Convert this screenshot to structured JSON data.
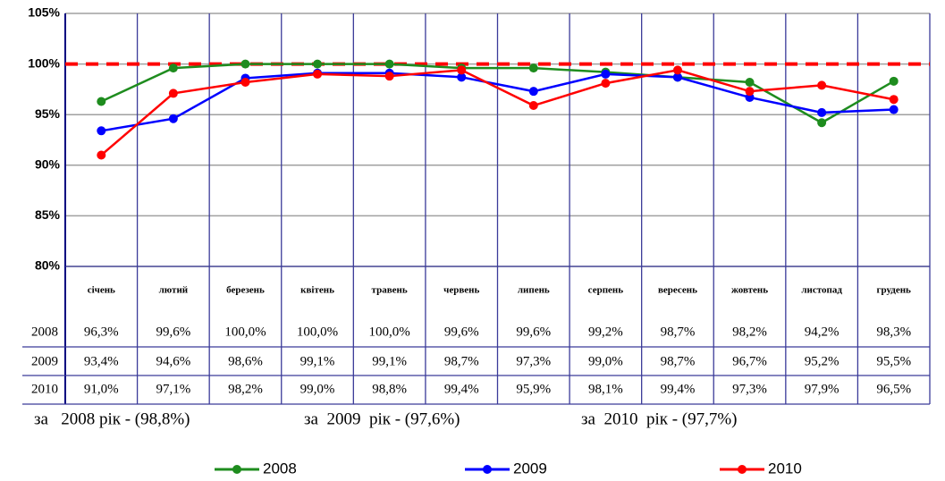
{
  "chart_data": {
    "type": "line",
    "categories": [
      "січень",
      "лютий",
      "березень",
      "квітень",
      "травень",
      "червень",
      "липень",
      "серпень",
      "вересень",
      "жовтень",
      "листопад",
      "грудень"
    ],
    "series": [
      {
        "name": "2008",
        "color": "#1e8c1e",
        "values": [
          96.3,
          99.6,
          100.0,
          100.0,
          100.0,
          99.6,
          99.6,
          99.2,
          98.7,
          98.2,
          94.2,
          98.3
        ],
        "value_labels": [
          "96,3%",
          "99,6%",
          "100,0%",
          "100,0%",
          "100,0%",
          "99,6%",
          "99,6%",
          "99,2%",
          "98,7%",
          "98,2%",
          "94,2%",
          "98,3%"
        ]
      },
      {
        "name": "2009",
        "color": "#0000ff",
        "values": [
          93.4,
          94.6,
          98.6,
          99.1,
          99.1,
          98.7,
          97.3,
          99.0,
          98.7,
          96.7,
          95.2,
          95.5
        ],
        "value_labels": [
          "93,4%",
          "94,6%",
          "98,6%",
          "99,1%",
          "99,1%",
          "98,7%",
          "97,3%",
          "99,0%",
          "98,7%",
          "96,7%",
          "95,2%",
          "95,5%"
        ]
      },
      {
        "name": "2010",
        "color": "#ff0000",
        "values": [
          91.0,
          97.1,
          98.2,
          99.0,
          98.8,
          99.4,
          95.9,
          98.1,
          99.4,
          97.3,
          97.9,
          96.5
        ],
        "value_labels": [
          "91,0%",
          "97,1%",
          "98,2%",
          "99,0%",
          "98,8%",
          "99,4%",
          "95,9%",
          "98,1%",
          "99,4%",
          "97,3%",
          "97,9%",
          "96,5%"
        ]
      }
    ],
    "ylim": [
      80,
      105
    ],
    "yticks": [
      {
        "value": 80,
        "label": "80%"
      },
      {
        "value": 85,
        "label": "85%"
      },
      {
        "value": 90,
        "label": "90%"
      },
      {
        "value": 95,
        "label": "95%"
      },
      {
        "value": 100,
        "label": "100%"
      },
      {
        "value": 105,
        "label": "105%"
      }
    ],
    "grid": true,
    "reference_line": {
      "value": 100,
      "color": "#ff0000"
    },
    "annotations": [
      "за   2008 рік - (98,8%)",
      "за  2009  рік - (97,6%)",
      "за  2010  рік - (97,7%)"
    ],
    "legend": "bottom"
  }
}
